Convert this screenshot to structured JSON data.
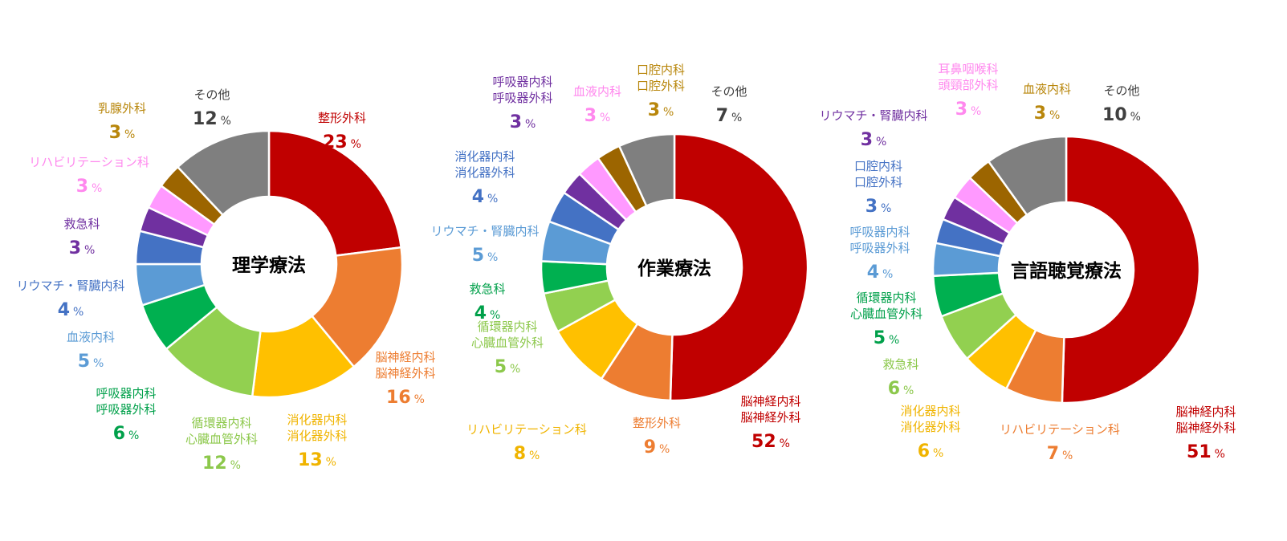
{
  "colors": {
    "dark_red": "#c00000",
    "orange": "#ed7d31",
    "yellow": "#ffc000",
    "light_green": "#92d050",
    "green": "#00b050",
    "light_blue": "#5b9bd5",
    "blue": "#4472c4",
    "purple": "#7030a0",
    "pink": "#ff99ff",
    "olive": "#9c6500",
    "gray": "#7f7f7f"
  },
  "percent_unit": "%",
  "chart_data": [
    {
      "type": "pie",
      "variant": "donut",
      "title": "理学療法",
      "unit": "%",
      "slices": [
        {
          "name": [
            "整形外科"
          ],
          "value": 23,
          "color": "#c00000",
          "label_color": "#c00000"
        },
        {
          "name": [
            "脳神経内科",
            "脳神経外科"
          ],
          "value": 16,
          "color": "#ed7d31",
          "label_color": "#ed7d31"
        },
        {
          "name": [
            "消化器内科",
            "消化器外科"
          ],
          "value": 13,
          "color": "#ffc000",
          "label_color": "#f0b400"
        },
        {
          "name": [
            "循環器内科",
            "心臓血管外科"
          ],
          "value": 12,
          "color": "#92d050",
          "label_color": "#8cc84b"
        },
        {
          "name": [
            "呼吸器内科",
            "呼吸器外科"
          ],
          "value": 6,
          "color": "#00b050",
          "label_color": "#00a04a"
        },
        {
          "name": [
            "血液内科"
          ],
          "value": 5,
          "color": "#5b9bd5",
          "label_color": "#5b9bd5"
        },
        {
          "name": [
            "リウマチ・腎臓内科"
          ],
          "value": 4,
          "color": "#4472c4",
          "label_color": "#4472c4"
        },
        {
          "name": [
            "救急科"
          ],
          "value": 3,
          "color": "#7030a0",
          "label_color": "#7030a0"
        },
        {
          "name": [
            "リハビリテーション科"
          ],
          "value": 3,
          "color": "#ff99ff",
          "label_color": "#ff88ee"
        },
        {
          "name": [
            "乳腺外科"
          ],
          "value": 3,
          "color": "#9c6500",
          "label_color": "#b8860b"
        },
        {
          "name": [
            "その他"
          ],
          "value": 12,
          "color": "#7f7f7f",
          "label_color": "#404040"
        }
      ]
    },
    {
      "type": "pie",
      "variant": "donut",
      "title": "作業療法",
      "unit": "%",
      "slices": [
        {
          "name": [
            "脳神経内科",
            "脳神経外科"
          ],
          "value": 52,
          "color": "#c00000",
          "label_color": "#c00000"
        },
        {
          "name": [
            "整形外科"
          ],
          "value": 9,
          "color": "#ed7d31",
          "label_color": "#ed7d31"
        },
        {
          "name": [
            "リハビリテーション科"
          ],
          "value": 8,
          "color": "#ffc000",
          "label_color": "#f0b400"
        },
        {
          "name": [
            "循環器内科",
            "心臓血管外科"
          ],
          "value": 5,
          "color": "#92d050",
          "label_color": "#8cc84b"
        },
        {
          "name": [
            "救急科"
          ],
          "value": 4,
          "color": "#00b050",
          "label_color": "#00a04a"
        },
        {
          "name": [
            "リウマチ・腎臓内科"
          ],
          "value": 5,
          "color": "#5b9bd5",
          "label_color": "#5b9bd5"
        },
        {
          "name": [
            "消化器内科",
            "消化器外科"
          ],
          "value": 4,
          "color": "#4472c4",
          "label_color": "#4472c4"
        },
        {
          "name": [
            "呼吸器内科",
            "呼吸器外科"
          ],
          "value": 3,
          "color": "#7030a0",
          "label_color": "#7030a0"
        },
        {
          "name": [
            "血液内科"
          ],
          "value": 3,
          "color": "#ff99ff",
          "label_color": "#ff88ee"
        },
        {
          "name": [
            "口腔内科",
            "口腔外科"
          ],
          "value": 3,
          "color": "#9c6500",
          "label_color": "#b8860b"
        },
        {
          "name": [
            "その他"
          ],
          "value": 7,
          "color": "#7f7f7f",
          "label_color": "#404040"
        }
      ]
    },
    {
      "type": "pie",
      "variant": "donut",
      "title": "言語聴覚療法",
      "unit": "%",
      "slices": [
        {
          "name": [
            "脳神経内科",
            "脳神経外科"
          ],
          "value": 51,
          "color": "#c00000",
          "label_color": "#c00000"
        },
        {
          "name": [
            "リハビリテーション科"
          ],
          "value": 7,
          "color": "#ed7d31",
          "label_color": "#ed7d31"
        },
        {
          "name": [
            "消化器内科",
            "消化器外科"
          ],
          "value": 6,
          "color": "#ffc000",
          "label_color": "#f0b400"
        },
        {
          "name": [
            "救急科"
          ],
          "value": 6,
          "color": "#92d050",
          "label_color": "#8cc84b"
        },
        {
          "name": [
            "循環器内科",
            "心臓血管外科"
          ],
          "value": 5,
          "color": "#00b050",
          "label_color": "#00a04a"
        },
        {
          "name": [
            "呼吸器内科",
            "呼吸器外科"
          ],
          "value": 4,
          "color": "#5b9bd5",
          "label_color": "#5b9bd5"
        },
        {
          "name": [
            "口腔内科",
            "口腔外科"
          ],
          "value": 3,
          "color": "#4472c4",
          "label_color": "#4472c4"
        },
        {
          "name": [
            "リウマチ・腎臓内科"
          ],
          "value": 3,
          "color": "#7030a0",
          "label_color": "#7030a0"
        },
        {
          "name": [
            "耳鼻咽喉科",
            "頭頸部外科"
          ],
          "value": 3,
          "color": "#ff99ff",
          "label_color": "#ff88ee"
        },
        {
          "name": [
            "血液内科"
          ],
          "value": 3,
          "color": "#9c6500",
          "label_color": "#b8860b"
        },
        {
          "name": [
            "その他"
          ],
          "value": 10,
          "color": "#7f7f7f",
          "label_color": "#404040"
        }
      ]
    }
  ]
}
